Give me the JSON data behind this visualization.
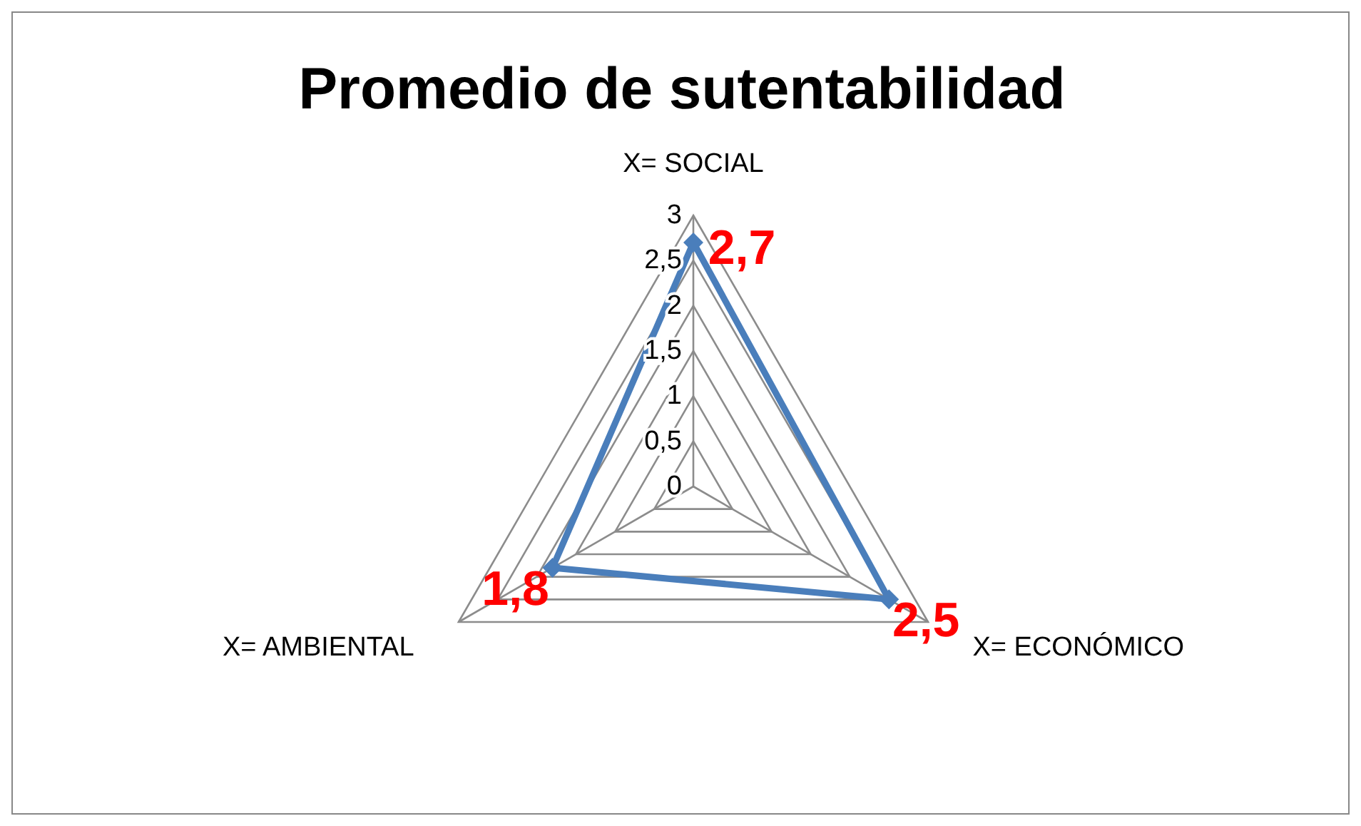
{
  "chart_data": {
    "type": "radar",
    "title": "Promedio de sutentabilidad",
    "categories": [
      "X= SOCIAL",
      "X= ECONÓMICO",
      "X= AMBIENTAL"
    ],
    "series": [
      {
        "color": "#4a7ebb",
        "values": [
          2.7,
          2.5,
          1.8
        ],
        "value_labels": [
          "2,7",
          "2,5",
          "1,8"
        ]
      }
    ],
    "ylim": [
      0,
      3
    ],
    "yticks": [
      0,
      {
        "value": 0.5,
        "label": "0,5"
      },
      1,
      {
        "value": 1.5,
        "label": "1,5"
      },
      2,
      {
        "value": 2.5,
        "label": "2,5"
      },
      3
    ],
    "grid": true,
    "legend": false,
    "marker": "diamond",
    "line_style": "solid"
  }
}
